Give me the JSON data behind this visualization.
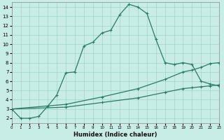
{
  "background_color": "#c8ece6",
  "grid_color": "#a0d4cc",
  "line_color": "#2a7a68",
  "xlabel": "Humidex (Indice chaleur)",
  "xlim": [
    0,
    23
  ],
  "ylim": [
    1.5,
    14.5
  ],
  "xticks": [
    0,
    1,
    2,
    3,
    4,
    5,
    6,
    7,
    8,
    9,
    10,
    11,
    12,
    13,
    14,
    15,
    16,
    17,
    18,
    19,
    20,
    21,
    22,
    23
  ],
  "yticks": [
    2,
    3,
    4,
    5,
    6,
    7,
    8,
    9,
    10,
    11,
    12,
    13,
    14
  ],
  "curve1_x": [
    0,
    1,
    2,
    3,
    4,
    5,
    6,
    7,
    8,
    9,
    10,
    11,
    12,
    13,
    14,
    15,
    16,
    17,
    18,
    19,
    20,
    21,
    22,
    23
  ],
  "curve1_y": [
    3.0,
    2.0,
    2.0,
    2.2,
    3.3,
    4.5,
    6.9,
    7.0,
    9.8,
    10.2,
    11.2,
    11.5,
    13.2,
    14.3,
    14.0,
    13.3,
    10.5,
    8.0,
    7.8,
    8.0,
    7.8,
    6.0,
    5.7,
    5.5
  ],
  "curve2_x": [
    0,
    6,
    10,
    14,
    17,
    19,
    20,
    21,
    22,
    23
  ],
  "curve2_y": [
    3.0,
    3.5,
    4.3,
    5.2,
    6.2,
    7.0,
    7.2,
    7.5,
    7.9,
    8.0
  ],
  "curve3_x": [
    0,
    6,
    10,
    14,
    17,
    19,
    20,
    21,
    22,
    23
  ],
  "curve3_y": [
    3.0,
    3.2,
    3.7,
    4.2,
    4.8,
    5.2,
    5.3,
    5.4,
    5.5,
    5.6
  ],
  "markersize": 2.5,
  "linewidth": 0.9
}
